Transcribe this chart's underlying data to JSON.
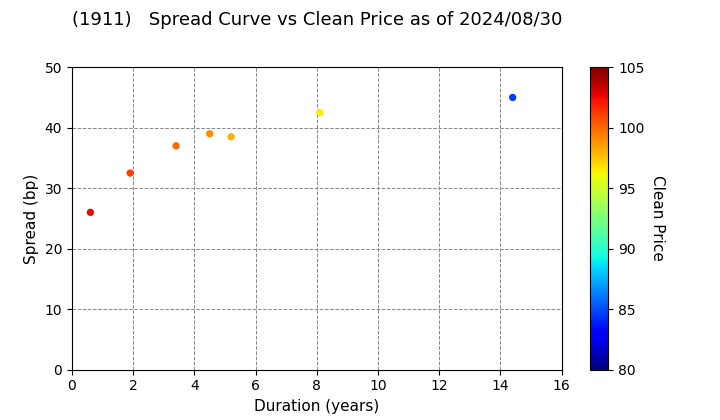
{
  "title": "(1911)   Spread Curve vs Clean Price as of 2024/08/30",
  "xlabel": "Duration (years)",
  "ylabel": "Spread (bp)",
  "colorbar_label": "Clean Price",
  "xlim": [
    0,
    16
  ],
  "ylim": [
    0,
    50
  ],
  "xticks": [
    0,
    2,
    4,
    6,
    8,
    10,
    12,
    14,
    16
  ],
  "yticks": [
    0,
    10,
    20,
    30,
    40,
    50
  ],
  "cmap_min": 80,
  "cmap_max": 105,
  "cbar_ticks": [
    80,
    85,
    90,
    95,
    100,
    105
  ],
  "points": [
    {
      "duration": 0.6,
      "spread": 26.0,
      "price": 102.5
    },
    {
      "duration": 1.9,
      "spread": 32.5,
      "price": 101.0
    },
    {
      "duration": 3.4,
      "spread": 37.0,
      "price": 100.0
    },
    {
      "duration": 4.5,
      "spread": 39.0,
      "price": 99.0
    },
    {
      "duration": 5.2,
      "spread": 38.5,
      "price": 98.0
    },
    {
      "duration": 8.1,
      "spread": 42.5,
      "price": 96.5
    },
    {
      "duration": 14.4,
      "spread": 45.0,
      "price": 84.5
    }
  ],
  "marker_size": 18,
  "background_color": "#ffffff",
  "grid_color": "#888888",
  "grid_style": "--",
  "grid_linewidth": 0.7,
  "title_fontsize": 13,
  "axis_label_fontsize": 11,
  "tick_fontsize": 10
}
